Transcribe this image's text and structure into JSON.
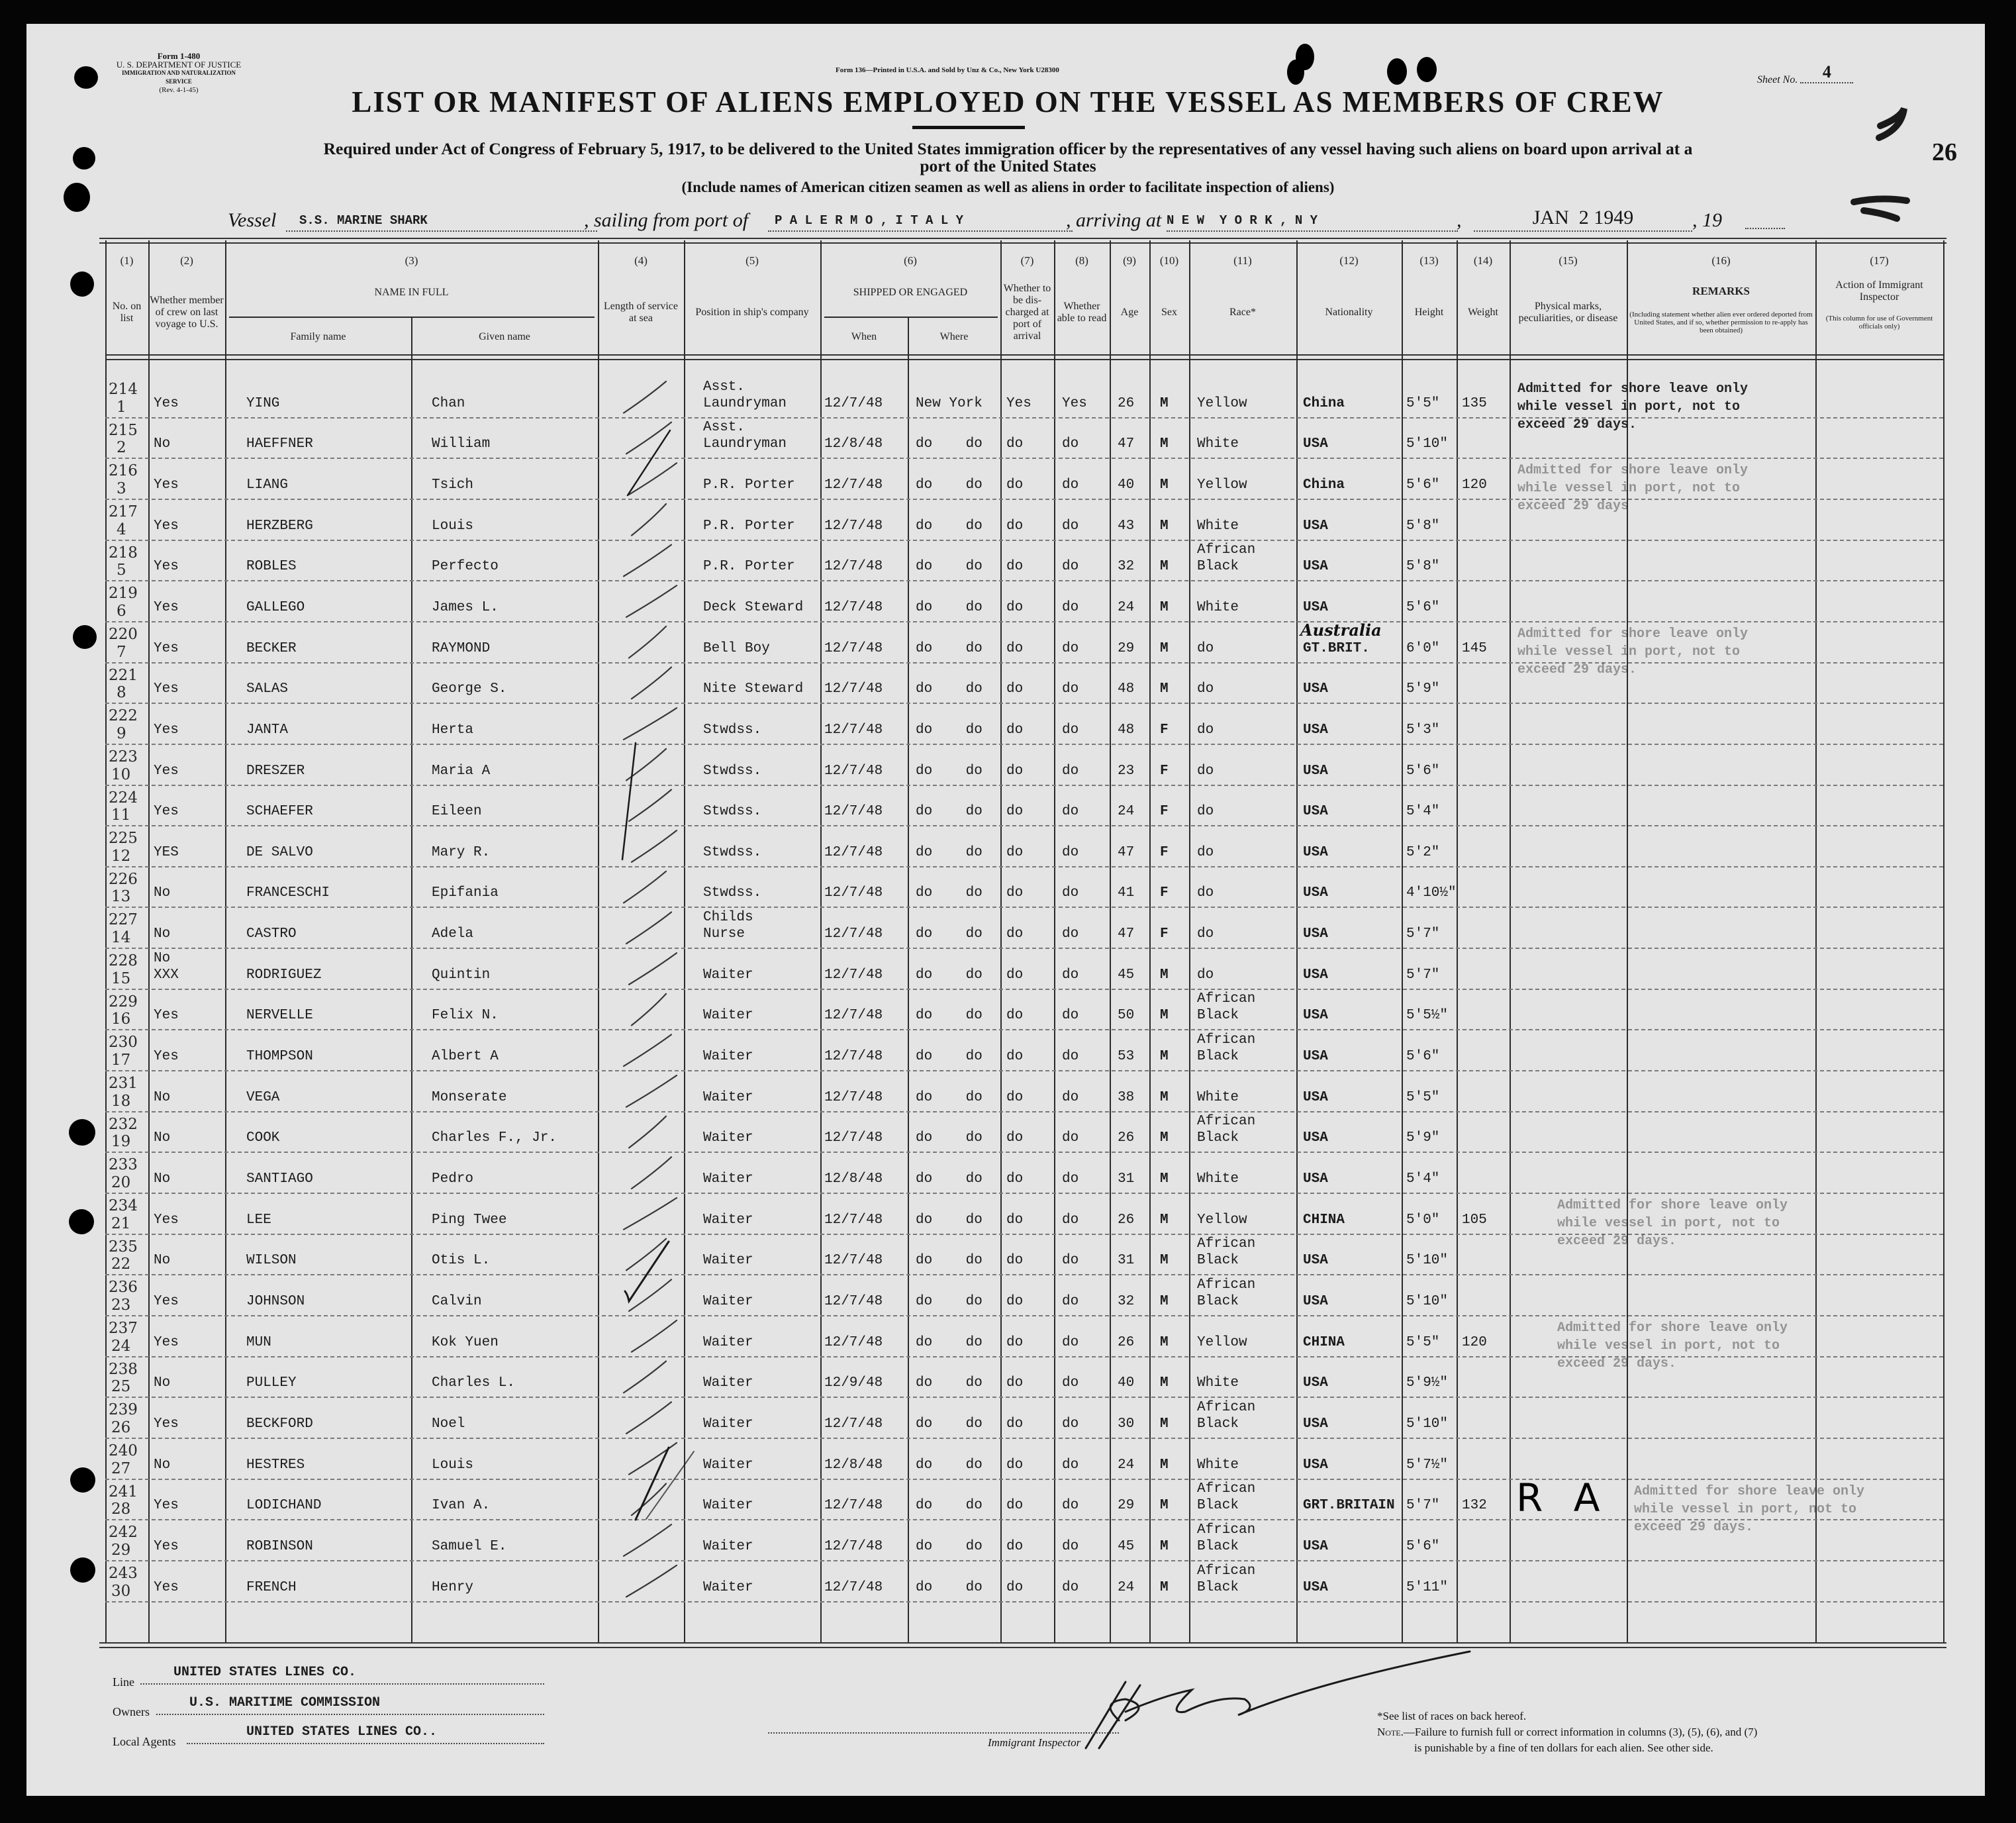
{
  "header": {
    "form_no": "Form 1-480",
    "department": "U. S. DEPARTMENT OF JUSTICE",
    "service": "IMMIGRATION AND NATURALIZATION SERVICE",
    "revision": "(Rev. 4-1-45)",
    "printer": "Form 136—Printed in U.S.A. and Sold by Unz & Co., New York U28300",
    "sheet_label": "Sheet No.",
    "sheet_no": "4",
    "corner_number": "26",
    "title": "LIST OR MANIFEST OF ALIENS EMPLOYED ON THE VESSEL AS MEMBERS OF CREW",
    "required_line1": "Required under Act of Congress of February 5, 1917, to be delivered to the United States immigration officer by the representatives of any vessel having such aliens on board upon arrival at a",
    "required_line2": "port of the United States",
    "include_note": "(Include names of American citizen seamen as well as aliens in order to facilitate inspection of aliens)"
  },
  "voyage": {
    "vessel_label": "Vessel",
    "vessel": "S.S. MARINE SHARK",
    "sailing_label": ", sailing from port of",
    "port_from": "P A L E R M O , I T A L Y",
    "arriving_label": ", arriving at",
    "port_to": "N E W  Y O R K , N Y",
    "date": "JAN  2 1949",
    "year_label": ", 19"
  },
  "columns": [
    {
      "num": "(1)",
      "label": "No. on list"
    },
    {
      "num": "(2)",
      "label": "Whether member of crew on last voyage to U.S."
    },
    {
      "num": "(3)",
      "label": "NAME IN FULL",
      "sub": [
        "Family name",
        "Given name"
      ]
    },
    {
      "num": "(4)",
      "label": "Length of service at sea"
    },
    {
      "num": "(5)",
      "label": "Position in ship's company"
    },
    {
      "num": "(6)",
      "label": "SHIPPED OR ENGAGED",
      "sub": [
        "When",
        "Where"
      ]
    },
    {
      "num": "(7)",
      "label": "Whether to be dis-charged at port of arrival"
    },
    {
      "num": "(8)",
      "label": "Whether able to read"
    },
    {
      "num": "(9)",
      "label": "Age"
    },
    {
      "num": "(10)",
      "label": "Sex"
    },
    {
      "num": "(11)",
      "label": "Race*"
    },
    {
      "num": "(12)",
      "label": "Nationality"
    },
    {
      "num": "(13)",
      "label": "Height"
    },
    {
      "num": "(14)",
      "label": "Weight"
    },
    {
      "num": "(15)",
      "label": "Physical marks, peculiarities, or disease"
    },
    {
      "num": "(16)",
      "label": "REMARKS",
      "note": "(Including statement whether alien ever ordered deported from United States, and if so, whether permission to re-apply has been obtained)"
    },
    {
      "num": "(17)",
      "label": "Action of Immigrant Inspector",
      "note": "(This column for use of Government officials only)"
    }
  ],
  "rows": [
    {
      "manifest_no": "214",
      "list_no": "1",
      "last_voyage": "Yes",
      "family": "YING",
      "given": "Chan",
      "position": "Asst.\nLaundryman",
      "when": "12/7/48",
      "where": "New York",
      "discharged": "Yes",
      "read": "Yes",
      "age": "26",
      "sex": "M",
      "race": "Yellow",
      "nationality": "China",
      "height": "5'5\"",
      "weight": "135",
      "remarks": "Admitted for shore leave only\nwhile vessel in port, not to\nexceed 29 days."
    },
    {
      "manifest_no": "215",
      "list_no": "2",
      "last_voyage": "No",
      "family": "HAEFFNER",
      "given": "William",
      "position": "Asst.\nLaundryman",
      "when": "12/8/48",
      "where": "do    do",
      "discharged": "do",
      "read": "do",
      "age": "47",
      "sex": "M",
      "race": "White",
      "nationality": "USA",
      "height": "5'10\"",
      "weight": "",
      "remarks": ""
    },
    {
      "manifest_no": "216",
      "list_no": "3",
      "last_voyage": "Yes",
      "family": "LIANG",
      "given": "Tsich",
      "position": "P.R. Porter",
      "when": "12/7/48",
      "where": "do    do",
      "discharged": "do",
      "read": "do",
      "age": "40",
      "sex": "M",
      "race": "Yellow",
      "nationality": "China",
      "height": "5'6\"",
      "weight": "120",
      "remarks": "Admitted for shore leave only\nwhile vessel in port, not to\nexceed 29 days"
    },
    {
      "manifest_no": "217",
      "list_no": "4",
      "last_voyage": "Yes",
      "family": "HERZBERG",
      "given": "Louis",
      "position": "P.R. Porter",
      "when": "12/7/48",
      "where": "do    do",
      "discharged": "do",
      "read": "do",
      "age": "43",
      "sex": "M",
      "race": "White",
      "nationality": "USA",
      "height": "5'8\"",
      "weight": "",
      "remarks": ""
    },
    {
      "manifest_no": "218",
      "list_no": "5",
      "last_voyage": "Yes",
      "family": "ROBLES",
      "given": "Perfecto",
      "position": "P.R. Porter",
      "when": "12/7/48",
      "where": "do    do",
      "discharged": "do",
      "read": "do",
      "age": "32",
      "sex": "M",
      "race": "African\nBlack",
      "nationality": "USA",
      "height": "5'8\"",
      "weight": "",
      "remarks": ""
    },
    {
      "manifest_no": "219",
      "list_no": "6",
      "last_voyage": "Yes",
      "family": "GALLEGO",
      "given": "James L.",
      "position": "Deck Steward",
      "when": "12/7/48",
      "where": "do    do",
      "discharged": "do",
      "read": "do",
      "age": "24",
      "sex": "M",
      "race": "White",
      "nationality": "USA",
      "height": "5'6\"",
      "weight": "",
      "remarks": ""
    },
    {
      "manifest_no": "220",
      "list_no": "7",
      "last_voyage": "Yes",
      "family": "BECKER",
      "given": "RAYMOND",
      "position": "Bell Boy",
      "when": "12/7/48",
      "where": "do    do",
      "discharged": "do",
      "read": "do",
      "age": "29",
      "sex": "M",
      "race": "do",
      "nationality": "GT.BRIT.",
      "nationality_handwritten": "Australia",
      "height": "6'0\"",
      "weight": "145",
      "remarks": "Admitted for shore leave only\nwhile vessel in port, not to\nexceed 29 days."
    },
    {
      "manifest_no": "221",
      "list_no": "8",
      "last_voyage": "Yes",
      "family": "SALAS",
      "given": "George S.",
      "position": "Nite Steward",
      "when": "12/7/48",
      "where": "do    do",
      "discharged": "do",
      "read": "do",
      "age": "48",
      "sex": "M",
      "race": "do",
      "nationality": "USA",
      "height": "5'9\"",
      "weight": "",
      "remarks": ""
    },
    {
      "manifest_no": "222",
      "list_no": "9",
      "last_voyage": "Yes",
      "family": "JANTA",
      "given": "Herta",
      "position": "Stwdss.",
      "when": "12/7/48",
      "where": "do    do",
      "discharged": "do",
      "read": "do",
      "age": "48",
      "sex": "F",
      "race": "do",
      "nationality": "USA",
      "height": "5'3\"",
      "weight": "",
      "remarks": ""
    },
    {
      "manifest_no": "223",
      "list_no": "10",
      "last_voyage": "Yes",
      "family": "DRESZER",
      "given": "Maria A",
      "position": "Stwdss.",
      "when": "12/7/48",
      "where": "do    do",
      "discharged": "do",
      "read": "do",
      "age": "23",
      "sex": "F",
      "race": "do",
      "nationality": "USA",
      "height": "5'6\"",
      "weight": "",
      "remarks": ""
    },
    {
      "manifest_no": "224",
      "list_no": "11",
      "last_voyage": "Yes",
      "family": "SCHAEFER",
      "given": "Eileen",
      "position": "Stwdss.",
      "when": "12/7/48",
      "where": "do    do",
      "discharged": "do",
      "read": "do",
      "age": "24",
      "sex": "F",
      "race": "do",
      "nationality": "USA",
      "height": "5'4\"",
      "weight": "",
      "remarks": ""
    },
    {
      "manifest_no": "225",
      "list_no": "12",
      "last_voyage": "YES",
      "family": "DE SALVO",
      "given": "Mary R.",
      "position": "Stwdss.",
      "when": "12/7/48",
      "where": "do    do",
      "discharged": "do",
      "read": "do",
      "age": "47",
      "sex": "F",
      "race": "do",
      "nationality": "USA",
      "height": "5'2\"",
      "weight": "",
      "remarks": ""
    },
    {
      "manifest_no": "226",
      "list_no": "13",
      "last_voyage": "No",
      "family": "FRANCESCHI",
      "given": "Epifania",
      "position": "Stwdss.",
      "when": "12/7/48",
      "where": "do    do",
      "discharged": "do",
      "read": "do",
      "age": "41",
      "sex": "F",
      "race": "do",
      "nationality": "USA",
      "height": "4'10½\"",
      "weight": "",
      "remarks": ""
    },
    {
      "manifest_no": "227",
      "list_no": "14",
      "last_voyage": "No",
      "family": "CASTRO",
      "given": "Adela",
      "position": "Childs\nNurse",
      "when": "12/7/48",
      "where": "do    do",
      "discharged": "do",
      "read": "do",
      "age": "47",
      "sex": "F",
      "race": "do",
      "nationality": "USA",
      "height": "5'7\"",
      "weight": "",
      "remarks": ""
    },
    {
      "manifest_no": "228",
      "list_no": "15",
      "last_voyage": "No\nXXX",
      "family": "RODRIGUEZ",
      "given": "Quintin",
      "position": "Waiter",
      "when": "12/7/48",
      "where": "do    do",
      "discharged": "do",
      "read": "do",
      "age": "45",
      "sex": "M",
      "race": "do",
      "nationality": "USA",
      "height": "5'7\"",
      "weight": "",
      "remarks": ""
    },
    {
      "manifest_no": "229",
      "list_no": "16",
      "last_voyage": "Yes",
      "family": "NERVELLE",
      "given": "Felix N.",
      "position": "Waiter",
      "when": "12/7/48",
      "where": "do    do",
      "discharged": "do",
      "read": "do",
      "age": "50",
      "sex": "M",
      "race": "African\nBlack",
      "nationality": "USA",
      "height": "5'5½\"",
      "weight": "",
      "remarks": ""
    },
    {
      "manifest_no": "230",
      "list_no": "17",
      "last_voyage": "Yes",
      "family": "THOMPSON",
      "given": "Albert A",
      "position": "Waiter",
      "when": "12/7/48",
      "where": "do    do",
      "discharged": "do",
      "read": "do",
      "age": "53",
      "sex": "M",
      "race": "African\nBlack",
      "nationality": "USA",
      "height": "5'6\"",
      "weight": "",
      "remarks": ""
    },
    {
      "manifest_no": "231",
      "list_no": "18",
      "last_voyage": "No",
      "family": "VEGA",
      "given": "Monserate",
      "position": "Waiter",
      "when": "12/7/48",
      "where": "do    do",
      "discharged": "do",
      "read": "do",
      "age": "38",
      "sex": "M",
      "race": "White",
      "nationality": "USA",
      "height": "5'5\"",
      "weight": "",
      "remarks": ""
    },
    {
      "manifest_no": "232",
      "list_no": "19",
      "last_voyage": "No",
      "family": "COOK",
      "given": "Charles F., Jr.",
      "position": "Waiter",
      "when": "12/7/48",
      "where": "do    do",
      "discharged": "do",
      "read": "do",
      "age": "26",
      "sex": "M",
      "race": "African\nBlack",
      "nationality": "USA",
      "height": "5'9\"",
      "weight": "",
      "remarks": ""
    },
    {
      "manifest_no": "233",
      "list_no": "20",
      "last_voyage": "No",
      "family": "SANTIAGO",
      "given": "Pedro",
      "position": "Waiter",
      "when": "12/8/48",
      "where": "do    do",
      "discharged": "do",
      "read": "do",
      "age": "31",
      "sex": "M",
      "race": "White",
      "nationality": "USA",
      "height": "5'4\"",
      "weight": "",
      "remarks": ""
    },
    {
      "manifest_no": "234",
      "list_no": "21",
      "last_voyage": "Yes",
      "family": "LEE",
      "given": "Ping Twee",
      "position": "Waiter",
      "when": "12/7/48",
      "where": "do    do",
      "discharged": "do",
      "read": "do",
      "age": "26",
      "sex": "M",
      "race": "Yellow",
      "nationality": "CHINA",
      "height": "5'0\"",
      "weight": "105",
      "remarks": "Admitted for shore leave only\nwhile vessel in port, not to\nexceed 29 days."
    },
    {
      "manifest_no": "235",
      "list_no": "22",
      "last_voyage": "No",
      "family": "WILSON",
      "given": "Otis L.",
      "position": "Waiter",
      "when": "12/7/48",
      "where": "do    do",
      "discharged": "do",
      "read": "do",
      "age": "31",
      "sex": "M",
      "race": "African\nBlack",
      "nationality": "USA",
      "height": "5'10\"",
      "weight": "",
      "remarks": ""
    },
    {
      "manifest_no": "236",
      "list_no": "23",
      "last_voyage": "Yes",
      "family": "JOHNSON",
      "given": "Calvin",
      "position": "Waiter",
      "when": "12/7/48",
      "where": "do    do",
      "discharged": "do",
      "read": "do",
      "age": "32",
      "sex": "M",
      "race": "African\nBlack",
      "nationality": "USA",
      "height": "5'10\"",
      "weight": "",
      "remarks": ""
    },
    {
      "manifest_no": "237",
      "list_no": "24",
      "last_voyage": "Yes",
      "family": "MUN",
      "given": "Kok Yuen",
      "position": "Waiter",
      "when": "12/7/48",
      "where": "do    do",
      "discharged": "do",
      "read": "do",
      "age": "26",
      "sex": "M",
      "race": "Yellow",
      "nationality": "CHINA",
      "height": "5'5\"",
      "weight": "120",
      "remarks": "Admitted for shore leave only\nwhile vessel in port, not to\nexceed 29 days."
    },
    {
      "manifest_no": "238",
      "list_no": "25",
      "last_voyage": "No",
      "family": "PULLEY",
      "given": "Charles L.",
      "position": "Waiter",
      "when": "12/9/48",
      "where": "do    do",
      "discharged": "do",
      "read": "do",
      "age": "40",
      "sex": "M",
      "race": "White",
      "nationality": "USA",
      "height": "5'9½\"",
      "weight": "",
      "remarks": ""
    },
    {
      "manifest_no": "239",
      "list_no": "26",
      "last_voyage": "Yes",
      "family": "BECKFORD",
      "given": "Noel",
      "position": "Waiter",
      "when": "12/7/48",
      "where": "do    do",
      "discharged": "do",
      "read": "do",
      "age": "30",
      "sex": "M",
      "race": "African\nBlack",
      "nationality": "USA",
      "height": "5'10\"",
      "weight": "",
      "remarks": ""
    },
    {
      "manifest_no": "240",
      "list_no": "27",
      "last_voyage": "No",
      "family": "HESTRES",
      "given": "Louis",
      "position": "Waiter",
      "when": "12/8/48",
      "where": "do    do",
      "discharged": "do",
      "read": "do",
      "age": "24",
      "sex": "M",
      "race": "White",
      "nationality": "USA",
      "height": "5'7½\"",
      "weight": "",
      "remarks": ""
    },
    {
      "manifest_no": "241",
      "list_no": "28",
      "last_voyage": "Yes",
      "family": "LODICHAND",
      "given": "Ivan A.",
      "position": "Waiter",
      "when": "12/7/48",
      "where": "do    do",
      "discharged": "do",
      "read": "do",
      "age": "29",
      "sex": "M",
      "race": "African\nBlack",
      "nationality": "GRT.BRITAIN",
      "height": "5'7\"",
      "weight": "132",
      "remarks": "Admitted for shore leave only\nwhile vessel in port, not to\nexceed 29 days.",
      "annotation": "R A"
    },
    {
      "manifest_no": "242",
      "list_no": "29",
      "last_voyage": "Yes",
      "family": "ROBINSON",
      "given": "Samuel E.",
      "position": "Waiter",
      "when": "12/7/48",
      "where": "do    do",
      "discharged": "do",
      "read": "do",
      "age": "45",
      "sex": "M",
      "race": "African\nBlack",
      "nationality": "USA",
      "height": "5'6\"",
      "weight": "",
      "remarks": ""
    },
    {
      "manifest_no": "243",
      "list_no": "30",
      "last_voyage": "Yes",
      "family": "FRENCH",
      "given": "Henry",
      "position": "Waiter",
      "when": "12/7/48",
      "where": "do    do",
      "discharged": "do",
      "read": "do",
      "age": "24",
      "sex": "M",
      "race": "African\nBlack",
      "nationality": "USA",
      "height": "5'11\"",
      "weight": "",
      "remarks": ""
    }
  ],
  "footer": {
    "line_label": "Line",
    "line": "UNITED STATES LINES CO.",
    "owners_label": "Owners",
    "owners": "U.S. MARITIME COMMISSION",
    "agents_label": "Local Agents",
    "agents": "UNITED STATES LINES CO..",
    "inspector_label": "Immigrant Inspector",
    "races_note": "*See list of races on back hereof.",
    "note_label": "Note.",
    "note_text": "—Failure to furnish full or correct information in columns (3), (5), (6), and (7)",
    "note_text2": "is punishable by a fine of ten dollars for each alien.  See other side."
  }
}
